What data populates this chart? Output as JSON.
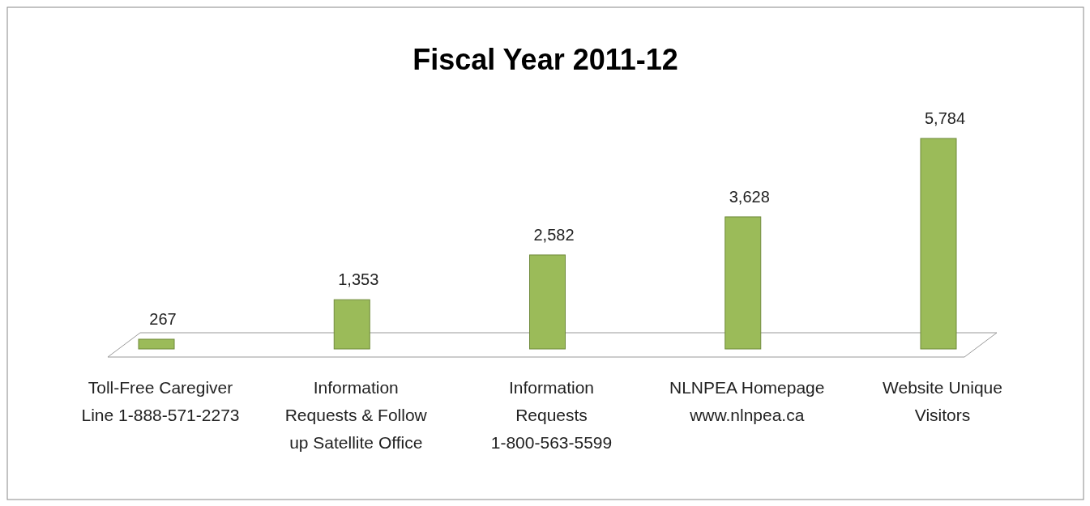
{
  "chart_data": {
    "type": "bar",
    "title": "Fiscal Year 2011-12",
    "categories": [
      "Toll-Free Caregiver Line 1-888-571-2273",
      "Information Requests & Follow up Satellite Office",
      "Information Requests 1-800-563-5599",
      "NLNPEA Homepage www.nlnpea.ca",
      "Website Unique Visitors"
    ],
    "values": [
      267,
      1353,
      2582,
      3628,
      5784
    ],
    "color": "#9bbb59",
    "value_labels": [
      "267",
      "1,353",
      "2,582",
      "3,628",
      "5,784"
    ]
  }
}
